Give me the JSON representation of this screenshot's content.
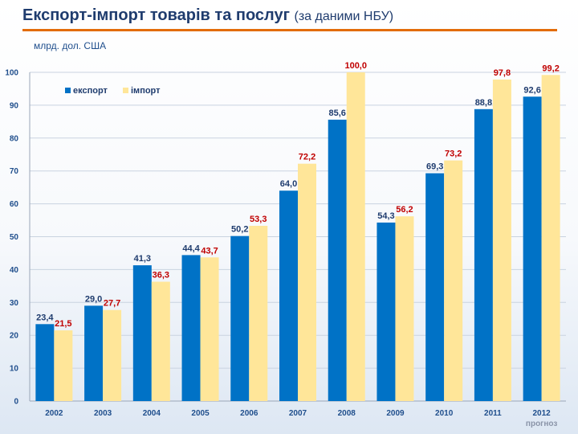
{
  "slide": {
    "title_main": "Експорт-імпорт товарів та послуг",
    "title_sub": "(за даними НБУ)",
    "unit": "млрд. дол. США"
  },
  "colors": {
    "export": "#0072c6",
    "import": "#ffe699",
    "title": "#1f3c6e",
    "accent_rule": "#e36c0a",
    "import_label": "#c00000"
  },
  "chart_data": {
    "type": "bar",
    "categories": [
      "2002",
      "2003",
      "2004",
      "2005",
      "2006",
      "2007",
      "2008",
      "2009",
      "2010",
      "2011",
      "2012"
    ],
    "category_note": {
      "category": "2012",
      "text": "прогноз"
    },
    "series": [
      {
        "name": "експорт",
        "values": [
          23.4,
          29.0,
          41.3,
          44.4,
          50.2,
          64.0,
          85.6,
          54.3,
          69.3,
          88.8,
          92.6
        ],
        "labels": [
          "23,4",
          "29,0",
          "41,3",
          "44,4",
          "50,2",
          "64,0",
          "85,6",
          "54,3",
          "69,3",
          "88,8",
          "92,6"
        ]
      },
      {
        "name": "імпорт",
        "values": [
          21.5,
          27.7,
          36.3,
          43.7,
          53.3,
          72.2,
          100.0,
          56.2,
          73.2,
          97.8,
          99.2
        ],
        "labels": [
          "21,5",
          "27,7",
          "36,3",
          "43,7",
          "53,3",
          "72,2",
          "100,0",
          "56,2",
          "73,2",
          "97,8",
          "99,2"
        ]
      }
    ],
    "ylim": [
      0,
      100
    ],
    "yticks": [
      0,
      10,
      20,
      30,
      40,
      50,
      60,
      70,
      80,
      90,
      100
    ],
    "grid": true,
    "legend": "top-left"
  }
}
